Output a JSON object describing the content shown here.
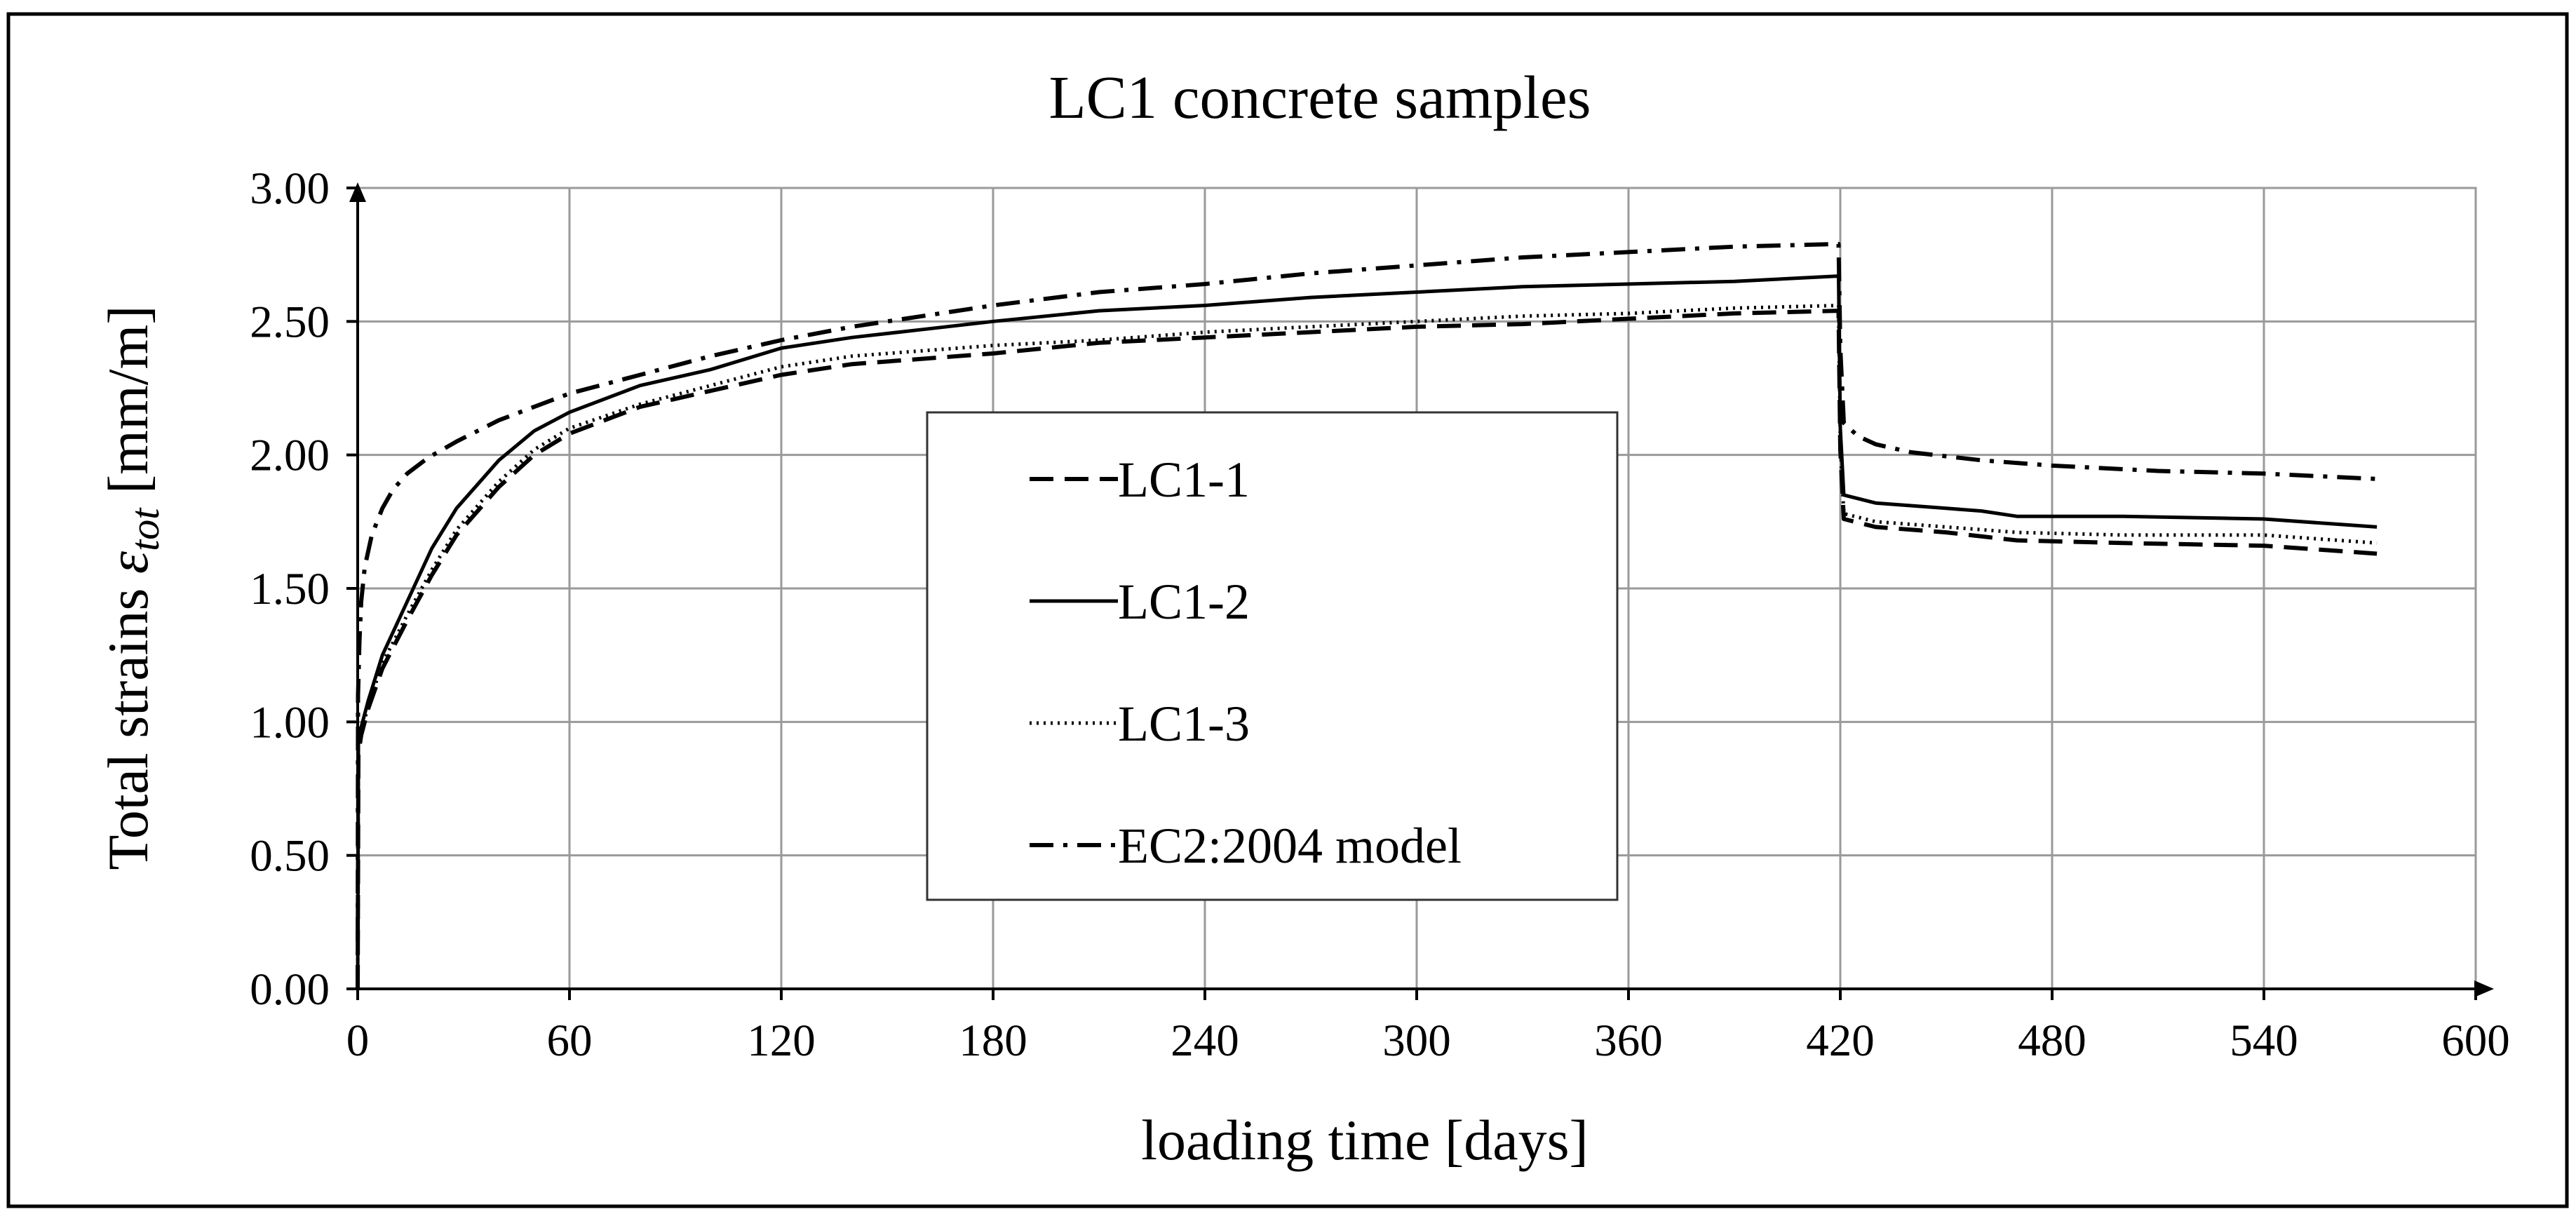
{
  "chart_data": {
    "type": "line",
    "title": "LC1 concrete samples",
    "xlabel": "loading time [days]",
    "ylabel_prefix": "Total strains ",
    "ylabel_symbol": "ε",
    "ylabel_subscript": "tot",
    "ylabel_suffix": " [mm/m]",
    "xlim": [
      0,
      600
    ],
    "ylim": [
      0,
      3
    ],
    "x_ticks": [
      "0",
      "60",
      "120",
      "180",
      "240",
      "300",
      "360",
      "420",
      "480",
      "540",
      "600"
    ],
    "y_ticks": [
      "0.00",
      "0.50",
      "1.00",
      "1.50",
      "2.00",
      "2.50",
      "3.00"
    ],
    "grid": true,
    "legend_position": "center",
    "series": [
      {
        "name": "LC1-1",
        "style": "dashed",
        "x": [
          0,
          0.2,
          1,
          3,
          7,
          14,
          21,
          28,
          40,
          50,
          60,
          80,
          100,
          120,
          140,
          160,
          180,
          210,
          240,
          270,
          300,
          330,
          360,
          390,
          419.5,
          420,
          421,
          430,
          450,
          470,
          500,
          540,
          572
        ],
        "y": [
          0,
          0.88,
          0.95,
          1.05,
          1.2,
          1.38,
          1.55,
          1.7,
          1.88,
          2.0,
          2.08,
          2.18,
          2.24,
          2.3,
          2.34,
          2.36,
          2.38,
          2.42,
          2.44,
          2.46,
          2.48,
          2.49,
          2.51,
          2.53,
          2.54,
          2.02,
          1.76,
          1.73,
          1.71,
          1.68,
          1.67,
          1.66,
          1.63
        ]
      },
      {
        "name": "LC1-2",
        "style": "solid",
        "x": [
          0,
          0.2,
          1,
          3,
          7,
          14,
          21,
          28,
          40,
          50,
          60,
          80,
          100,
          120,
          140,
          160,
          180,
          210,
          240,
          270,
          300,
          330,
          360,
          390,
          419.5,
          420,
          421,
          430,
          450,
          460,
          470,
          500,
          540,
          572
        ],
        "y": [
          0,
          0.92,
          0.98,
          1.08,
          1.25,
          1.45,
          1.65,
          1.8,
          1.98,
          2.09,
          2.16,
          2.26,
          2.32,
          2.4,
          2.44,
          2.47,
          2.5,
          2.54,
          2.56,
          2.59,
          2.61,
          2.63,
          2.64,
          2.65,
          2.67,
          2.1,
          1.85,
          1.82,
          1.8,
          1.79,
          1.77,
          1.77,
          1.76,
          1.73
        ]
      },
      {
        "name": "LC1-3",
        "style": "dotted",
        "x": [
          0,
          0.2,
          1,
          3,
          7,
          14,
          21,
          28,
          40,
          50,
          60,
          80,
          100,
          120,
          140,
          160,
          180,
          210,
          240,
          270,
          300,
          330,
          360,
          390,
          419.5,
          420,
          421,
          430,
          450,
          470,
          500,
          540,
          572
        ],
        "y": [
          0,
          0.9,
          0.96,
          1.06,
          1.22,
          1.4,
          1.57,
          1.72,
          1.9,
          2.02,
          2.1,
          2.19,
          2.26,
          2.33,
          2.37,
          2.39,
          2.41,
          2.43,
          2.46,
          2.48,
          2.5,
          2.52,
          2.53,
          2.55,
          2.56,
          2.05,
          1.78,
          1.75,
          1.73,
          1.71,
          1.7,
          1.7,
          1.67
        ]
      },
      {
        "name": "EC2:2004 model",
        "style": "dashdot",
        "x": [
          0,
          0.1,
          0.5,
          1,
          2,
          4,
          7,
          10,
          14,
          20,
          28,
          40,
          50,
          60,
          80,
          100,
          120,
          140,
          160,
          180,
          210,
          240,
          270,
          300,
          330,
          360,
          390,
          419.5,
          420,
          421,
          425,
          430,
          440,
          460,
          480,
          510,
          540,
          572
        ],
        "y": [
          0,
          1.1,
          1.3,
          1.45,
          1.58,
          1.7,
          1.8,
          1.87,
          1.93,
          1.99,
          2.05,
          2.13,
          2.18,
          2.23,
          2.3,
          2.37,
          2.43,
          2.48,
          2.52,
          2.56,
          2.61,
          2.64,
          2.68,
          2.71,
          2.74,
          2.76,
          2.78,
          2.79,
          2.4,
          2.12,
          2.07,
          2.04,
          2.01,
          1.98,
          1.96,
          1.94,
          1.93,
          1.91
        ]
      }
    ]
  }
}
